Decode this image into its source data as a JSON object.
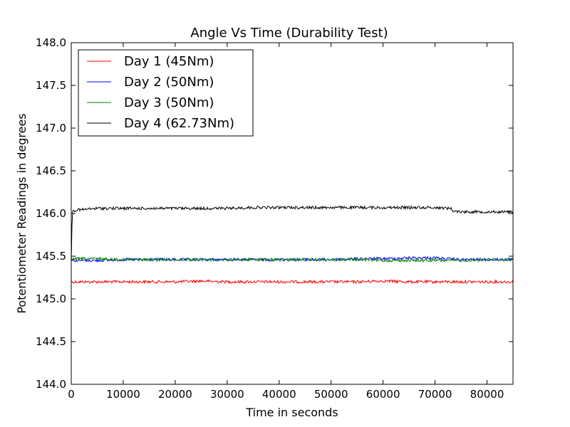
{
  "chart_data": {
    "type": "line",
    "title": "Angle Vs Time (Durability Test)",
    "xlabel": "Time in seconds",
    "ylabel": "Potentiometer Readings in degrees",
    "xlim": [
      0,
      85000
    ],
    "ylim": [
      144.0,
      148.0
    ],
    "x_ticks": [
      0,
      10000,
      20000,
      30000,
      40000,
      50000,
      60000,
      70000,
      80000
    ],
    "x_tick_labels": [
      "0",
      "10000",
      "20000",
      "30000",
      "40000",
      "50000",
      "60000",
      "70000",
      "80000"
    ],
    "y_ticks": [
      144.0,
      144.5,
      145.0,
      145.5,
      146.0,
      146.5,
      147.0,
      147.5,
      148.0
    ],
    "y_tick_labels": [
      "144.0",
      "144.5",
      "145.0",
      "145.5",
      "146.0",
      "146.5",
      "147.0",
      "147.5",
      "148.0"
    ],
    "grid": false,
    "legend_position": "top-left",
    "series": [
      {
        "name": "Day 1 (45Nm)",
        "color": "#ff0000",
        "x": [
          0,
          5000,
          10000,
          15000,
          20000,
          25000,
          30000,
          35000,
          40000,
          45000,
          50000,
          55000,
          60000,
          65000,
          70000,
          75000,
          80000,
          85000
        ],
        "y": [
          145.2,
          145.2,
          145.2,
          145.2,
          145.2,
          145.21,
          145.2,
          145.2,
          145.2,
          145.2,
          145.2,
          145.2,
          145.21,
          145.2,
          145.2,
          145.2,
          145.2,
          145.2
        ]
      },
      {
        "name": "Day 2 (50Nm)",
        "color": "#0000ff",
        "x": [
          0,
          5000,
          10000,
          15000,
          20000,
          25000,
          30000,
          35000,
          40000,
          45000,
          50000,
          55000,
          60000,
          65000,
          70000,
          72000,
          75000,
          80000,
          85000
        ],
        "y": [
          145.45,
          145.45,
          145.46,
          145.46,
          145.46,
          145.46,
          145.46,
          145.46,
          145.46,
          145.46,
          145.46,
          145.47,
          145.47,
          145.48,
          145.48,
          145.47,
          145.46,
          145.46,
          145.46
        ]
      },
      {
        "name": "Day 3 (50Nm)",
        "color": "#008000",
        "x": [
          0,
          5000,
          10000,
          15000,
          20000,
          25000,
          30000,
          35000,
          40000,
          45000,
          50000,
          55000,
          60000,
          65000,
          70000,
          75000,
          80000,
          85000
        ],
        "y": [
          145.47,
          145.47,
          145.46,
          145.46,
          145.46,
          145.46,
          145.46,
          145.46,
          145.46,
          145.46,
          145.46,
          145.46,
          145.45,
          145.45,
          145.45,
          145.45,
          145.46,
          145.46
        ]
      },
      {
        "name": "Day 4 (62.73Nm)",
        "color": "#000000",
        "x": [
          0,
          200,
          1000,
          5000,
          10000,
          15000,
          20000,
          25000,
          30000,
          35000,
          40000,
          45000,
          50000,
          55000,
          60000,
          65000,
          70000,
          73000,
          73500,
          75000,
          80000,
          85000
        ],
        "y": [
          145.45,
          146.03,
          146.04,
          146.06,
          146.06,
          146.06,
          146.06,
          146.06,
          146.06,
          146.07,
          146.07,
          146.07,
          146.07,
          146.07,
          146.07,
          146.07,
          146.07,
          146.06,
          146.03,
          146.02,
          146.02,
          146.02
        ]
      }
    ]
  }
}
